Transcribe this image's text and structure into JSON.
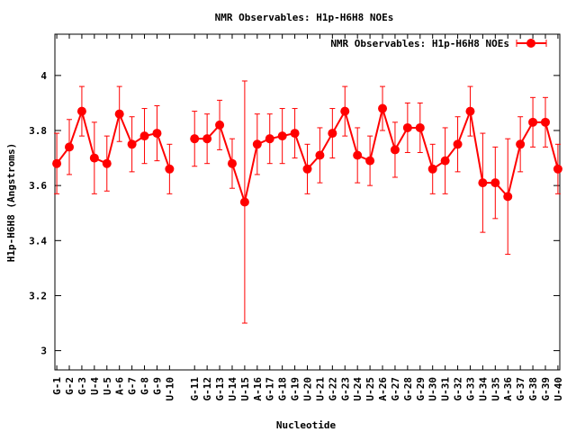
{
  "chart_data": {
    "type": "line",
    "title": "NMR Observables: H1p-H6H8 NOEs",
    "xlabel": "Nucleotide",
    "ylabel": "H1p-H6H8 (Angstroms)",
    "ylim": [
      2.93,
      4.15
    ],
    "yticks": [
      "3",
      "3.2",
      "3.4",
      "3.6",
      "3.8",
      "4"
    ],
    "legend": "top-right",
    "color": "#ff0000",
    "series": [
      {
        "name": "NMR Observables: H1p-H6H8 NOEs",
        "points": [
          {
            "pos": 1,
            "label": "G-1",
            "y": 3.68,
            "err": 0.11
          },
          {
            "pos": 2,
            "label": "G-2",
            "y": 3.74,
            "err": 0.1
          },
          {
            "pos": 3,
            "label": "G-3",
            "y": 3.87,
            "err": 0.09
          },
          {
            "pos": 4,
            "label": "U-4",
            "y": 3.7,
            "err": 0.13
          },
          {
            "pos": 5,
            "label": "U-5",
            "y": 3.68,
            "err": 0.1
          },
          {
            "pos": 6,
            "label": "A-6",
            "y": 3.86,
            "err": 0.1
          },
          {
            "pos": 7,
            "label": "G-7",
            "y": 3.75,
            "err": 0.1
          },
          {
            "pos": 8,
            "label": "G-8",
            "y": 3.78,
            "err": 0.1
          },
          {
            "pos": 9,
            "label": "G-9",
            "y": 3.79,
            "err": 0.1
          },
          {
            "pos": 10,
            "label": "U-10",
            "y": 3.66,
            "err": 0.09
          },
          {
            "pos": 12,
            "label": "G-11",
            "y": 3.77,
            "err": 0.1
          },
          {
            "pos": 13,
            "label": "G-12",
            "y": 3.77,
            "err": 0.09
          },
          {
            "pos": 14,
            "label": "G-13",
            "y": 3.82,
            "err": 0.09
          },
          {
            "pos": 15,
            "label": "U-14",
            "y": 3.68,
            "err": 0.09
          },
          {
            "pos": 16,
            "label": "U-15",
            "y": 3.54,
            "err": 0.44
          },
          {
            "pos": 17,
            "label": "A-16",
            "y": 3.75,
            "err": 0.11
          },
          {
            "pos": 18,
            "label": "G-17",
            "y": 3.77,
            "err": 0.09
          },
          {
            "pos": 19,
            "label": "G-18",
            "y": 3.78,
            "err": 0.1
          },
          {
            "pos": 20,
            "label": "G-19",
            "y": 3.79,
            "err": 0.09
          },
          {
            "pos": 21,
            "label": "U-20",
            "y": 3.66,
            "err": 0.09
          },
          {
            "pos": 22,
            "label": "U-21",
            "y": 3.71,
            "err": 0.1
          },
          {
            "pos": 23,
            "label": "G-22",
            "y": 3.79,
            "err": 0.09
          },
          {
            "pos": 24,
            "label": "G-23",
            "y": 3.87,
            "err": 0.09
          },
          {
            "pos": 25,
            "label": "U-24",
            "y": 3.71,
            "err": 0.1
          },
          {
            "pos": 26,
            "label": "U-25",
            "y": 3.69,
            "err": 0.09
          },
          {
            "pos": 27,
            "label": "A-26",
            "y": 3.88,
            "err": 0.08
          },
          {
            "pos": 28,
            "label": "G-27",
            "y": 3.73,
            "err": 0.1
          },
          {
            "pos": 29,
            "label": "G-28",
            "y": 3.81,
            "err": 0.09
          },
          {
            "pos": 30,
            "label": "G-29",
            "y": 3.81,
            "err": 0.09
          },
          {
            "pos": 31,
            "label": "U-30",
            "y": 3.66,
            "err": 0.09
          },
          {
            "pos": 32,
            "label": "U-31",
            "y": 3.69,
            "err": 0.12
          },
          {
            "pos": 33,
            "label": "G-32",
            "y": 3.75,
            "err": 0.1
          },
          {
            "pos": 34,
            "label": "G-33",
            "y": 3.87,
            "err": 0.09
          },
          {
            "pos": 35,
            "label": "U-34",
            "y": 3.61,
            "err": 0.18
          },
          {
            "pos": 36,
            "label": "U-35",
            "y": 3.61,
            "err": 0.13
          },
          {
            "pos": 37,
            "label": "A-36",
            "y": 3.56,
            "err": 0.21
          },
          {
            "pos": 38,
            "label": "G-37",
            "y": 3.75,
            "err": 0.1
          },
          {
            "pos": 39,
            "label": "G-38",
            "y": 3.83,
            "err": 0.09
          },
          {
            "pos": 40,
            "label": "G-39",
            "y": 3.83,
            "err": 0.09
          },
          {
            "pos": 41,
            "label": "U-40",
            "y": 3.66,
            "err": 0.09
          }
        ]
      }
    ]
  }
}
